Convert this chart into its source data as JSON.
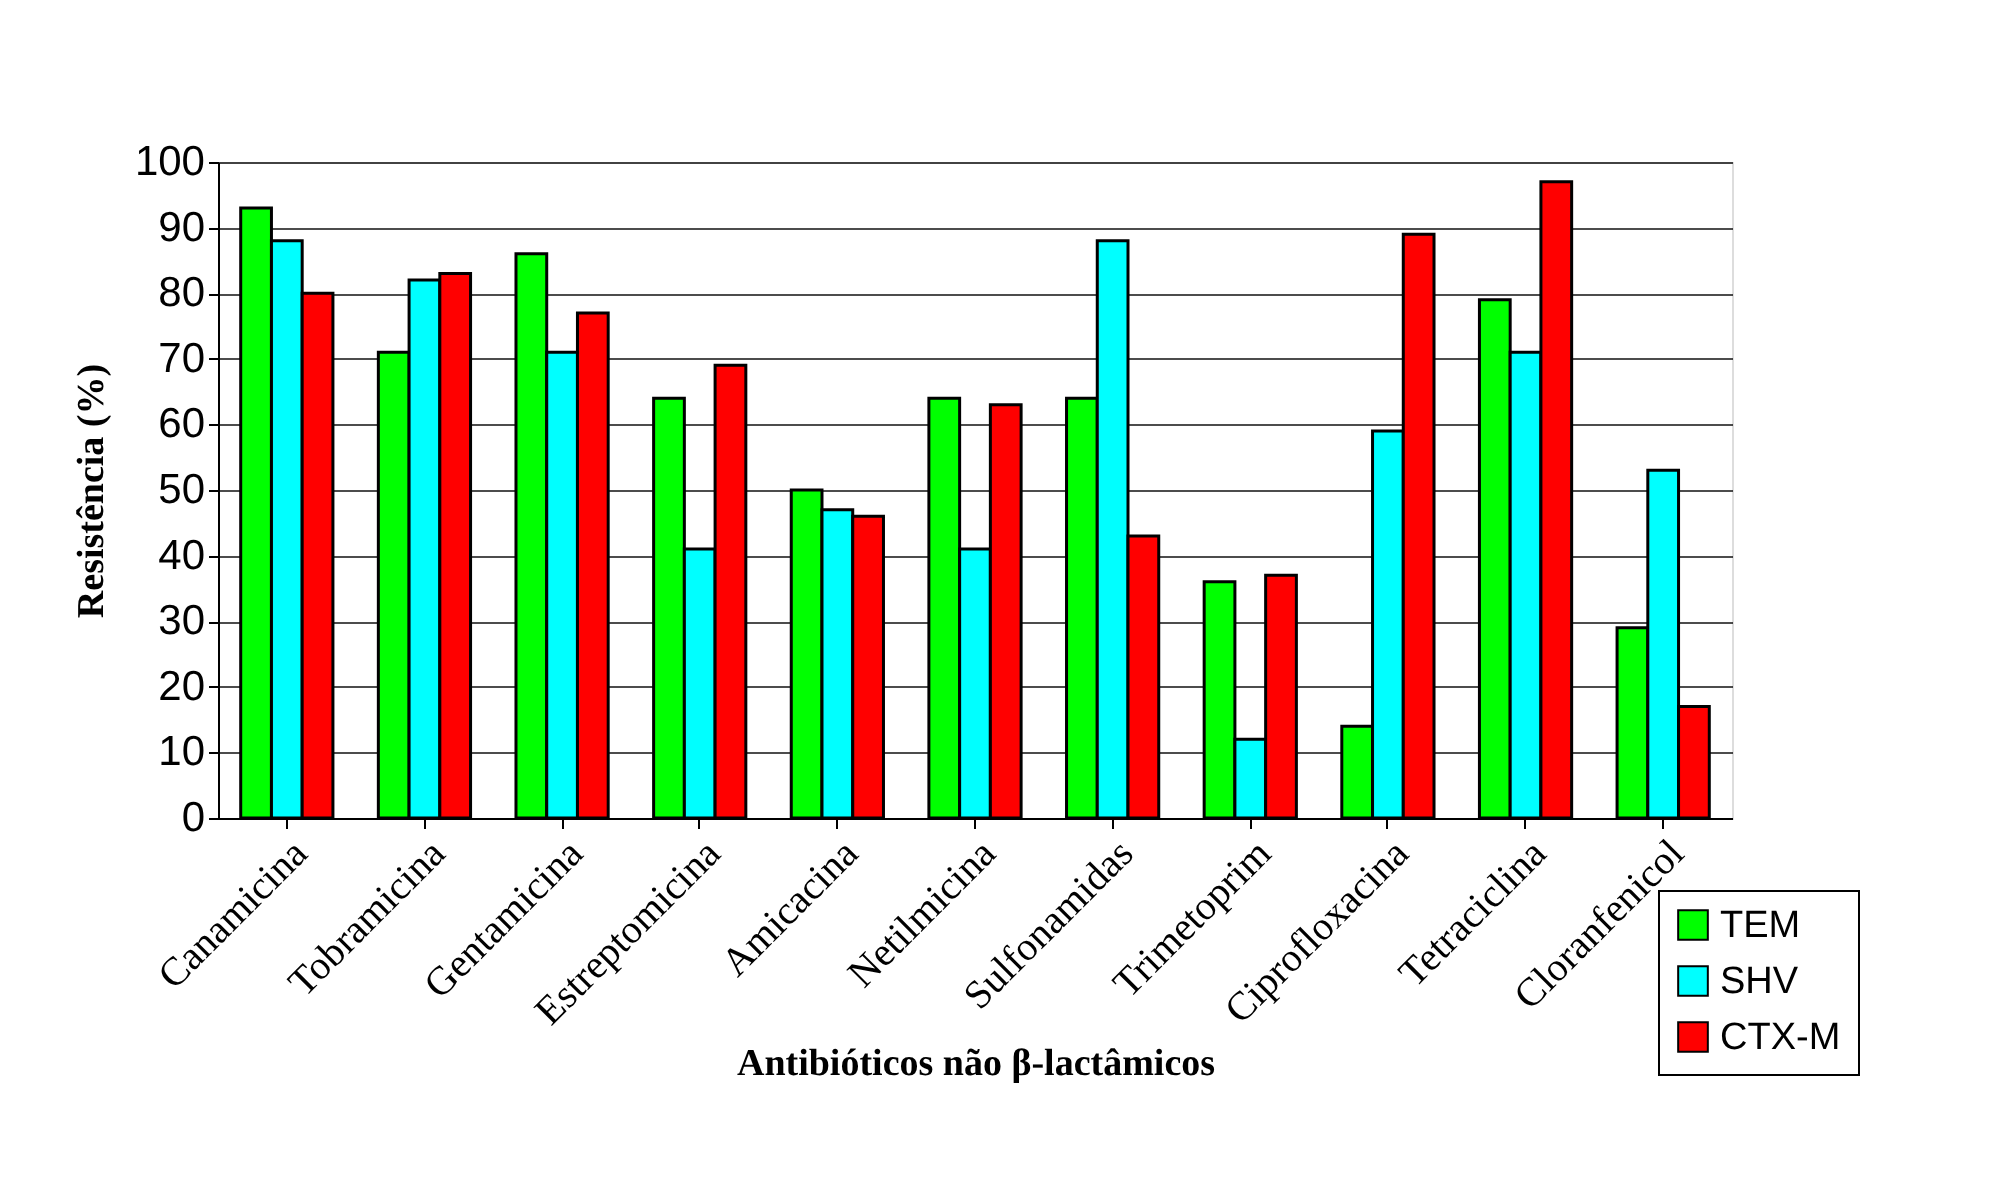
{
  "chart_data": {
    "type": "bar",
    "xlabel": "Antibióticos não β-lactâmicos",
    "ylabel": "Resistência (%)",
    "categories": [
      "Canamicina",
      "Tobramicina",
      "Gentamicina",
      "Estreptomicina",
      "Amicacina",
      "Netilmicina",
      "Sulfonamidas",
      "Trimetoprim",
      "Ciprofloxacina",
      "Tetraciclina",
      "Cloranfenicol"
    ],
    "series": [
      {
        "name": "TEM",
        "color": "#00ff00",
        "values": [
          93,
          71,
          86,
          64,
          50,
          64,
          64,
          36,
          14,
          79,
          29
        ]
      },
      {
        "name": "SHV",
        "color": "#00ffff",
        "values": [
          88,
          82,
          71,
          41,
          47,
          41,
          88,
          12,
          59,
          71,
          53
        ]
      },
      {
        "name": "CTX-M",
        "color": "#ff0000",
        "values": [
          80,
          83,
          77,
          69,
          46,
          63,
          43,
          37,
          89,
          97,
          17
        ]
      }
    ],
    "ylim": [
      0,
      100
    ],
    "yticks": [
      0,
      10,
      20,
      30,
      40,
      50,
      60,
      70,
      80,
      90,
      100
    ],
    "grid": "y",
    "legend": "bottom right"
  }
}
